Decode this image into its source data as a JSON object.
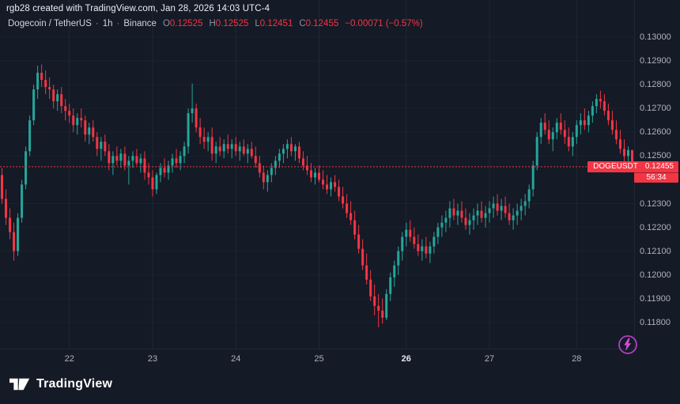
{
  "attribution": "rgb28 created with TradingView.com, Jan 28, 2026 14:03 UTC-4",
  "legend": {
    "symbol_title": "Dogecoin / TetherUS",
    "dot": "·",
    "interval": "1h",
    "exchange": "Binance",
    "ohlc": {
      "o_label": "O",
      "o": "0.12525",
      "h_label": "H",
      "h": "0.12525",
      "l_label": "L",
      "l": "0.12451",
      "c_label": "C",
      "c": "0.12455"
    },
    "change": "−0.00071 (−0.57%)"
  },
  "price_label": {
    "symbol": "DOGEUSDT",
    "price": "0.12455",
    "countdown": "56:34"
  },
  "logo": {
    "text": "TradingView"
  },
  "colors": {
    "up": "#26a69a",
    "down": "#f23645",
    "bg": "#141a26",
    "axis_text": "#aeb2bd",
    "grid_h": "rgba(151,161,186,0.06)",
    "grid_v": "rgba(151,161,186,0.10)",
    "flash": "#bb43cd"
  },
  "chart_data": {
    "type": "candlestick",
    "title": "Dogecoin / TetherUS, 1h, Binance",
    "symbol": "DOGEUSDT",
    "exchange": "Binance",
    "interval": "1h",
    "last_price": 0.12455,
    "last_candle": {
      "open": 0.12525,
      "high": 0.12525,
      "low": 0.12451,
      "close": 0.12455,
      "change": -0.00071,
      "change_pct": -0.57
    },
    "y_axis": {
      "view_max": 0.13156,
      "view_min": 0.1169,
      "labels": [
        {
          "text": "0.13000",
          "price": 0.13
        },
        {
          "text": "0.12900",
          "price": 0.129
        },
        {
          "text": "0.12800",
          "price": 0.128
        },
        {
          "text": "0.12700",
          "price": 0.127
        },
        {
          "text": "0.12600",
          "price": 0.126
        },
        {
          "text": "0.12500",
          "price": 0.125
        },
        {
          "text": "0.12300",
          "price": 0.123
        },
        {
          "text": "0.12200",
          "price": 0.122
        },
        {
          "text": "0.12100",
          "price": 0.121
        },
        {
          "text": "0.12000",
          "price": 0.12
        },
        {
          "text": "0.11900",
          "price": 0.119
        },
        {
          "text": "0.11800",
          "price": 0.118
        }
      ]
    },
    "x_ticks": [
      {
        "text": "22",
        "index": 17,
        "bold": false
      },
      {
        "text": "23",
        "index": 38,
        "bold": false
      },
      {
        "text": "24",
        "index": 59,
        "bold": false
      },
      {
        "text": "25",
        "index": 80,
        "bold": false
      },
      {
        "text": "26",
        "index": 102,
        "bold": true
      },
      {
        "text": "27",
        "index": 123,
        "bold": false
      },
      {
        "text": "28",
        "index": 145,
        "bold": false
      }
    ],
    "candles": [
      [
        0.1242,
        0.1245,
        0.123,
        0.1232
      ],
      [
        0.1232,
        0.1236,
        0.1221,
        0.1224
      ],
      [
        0.1224,
        0.1228,
        0.1215,
        0.1218
      ],
      [
        0.1218,
        0.1222,
        0.1206,
        0.121
      ],
      [
        0.121,
        0.1226,
        0.1208,
        0.1224
      ],
      [
        0.1224,
        0.124,
        0.1222,
        0.1238
      ],
      [
        0.1238,
        0.1254,
        0.1236,
        0.1252
      ],
      [
        0.1252,
        0.1267,
        0.125,
        0.1265
      ],
      [
        0.1265,
        0.128,
        0.1263,
        0.1278
      ],
      [
        0.1278,
        0.1288,
        0.1274,
        0.1285
      ],
      [
        0.1285,
        0.12885,
        0.1279,
        0.1282
      ],
      [
        0.1282,
        0.1286,
        0.1276,
        0.1279
      ],
      [
        0.1279,
        0.1283,
        0.1274,
        0.1278
      ],
      [
        0.1278,
        0.128,
        0.127,
        0.1273
      ],
      [
        0.1273,
        0.1278,
        0.1269,
        0.1276
      ],
      [
        0.1276,
        0.1279,
        0.1268,
        0.1271
      ],
      [
        0.1271,
        0.1274,
        0.1265,
        0.1269
      ],
      [
        0.1269,
        0.1272,
        0.1264,
        0.1267
      ],
      [
        0.1267,
        0.127,
        0.126,
        0.1263
      ],
      [
        0.1263,
        0.1268,
        0.1259,
        0.1266
      ],
      [
        0.1266,
        0.127,
        0.1262,
        0.1265
      ],
      [
        0.1265,
        0.1267,
        0.1256,
        0.1259
      ],
      [
        0.1259,
        0.1264,
        0.1255,
        0.1262
      ],
      [
        0.1262,
        0.1265,
        0.1256,
        0.1258
      ],
      [
        0.1258,
        0.126,
        0.125,
        0.1253
      ],
      [
        0.1253,
        0.1258,
        0.1248,
        0.1256
      ],
      [
        0.1256,
        0.1259,
        0.125,
        0.1252
      ],
      [
        0.1252,
        0.1255,
        0.1244,
        0.1247
      ],
      [
        0.1247,
        0.1252,
        0.1242,
        0.125
      ],
      [
        0.125,
        0.1254,
        0.1246,
        0.1248
      ],
      [
        0.1248,
        0.1253,
        0.1245,
        0.1251
      ],
      [
        0.1251,
        0.1254,
        0.1244,
        0.1246
      ],
      [
        0.1246,
        0.125,
        0.1238,
        0.1248
      ],
      [
        0.1248,
        0.1252,
        0.1245,
        0.125
      ],
      [
        0.125,
        0.1253,
        0.1246,
        0.1247
      ],
      [
        0.1247,
        0.1251,
        0.1243,
        0.1249
      ],
      [
        0.1249,
        0.1252,
        0.124,
        0.1243
      ],
      [
        0.1243,
        0.1247,
        0.1238,
        0.1241
      ],
      [
        0.1241,
        0.1244,
        0.1233,
        0.1236
      ],
      [
        0.1236,
        0.1243,
        0.1234,
        0.1242
      ],
      [
        0.1242,
        0.1247,
        0.1239,
        0.1245
      ],
      [
        0.1245,
        0.1249,
        0.1241,
        0.1243
      ],
      [
        0.1243,
        0.1248,
        0.124,
        0.1246
      ],
      [
        0.1246,
        0.1251,
        0.1243,
        0.1249
      ],
      [
        0.1249,
        0.1253,
        0.1245,
        0.1247
      ],
      [
        0.1247,
        0.1252,
        0.1244,
        0.125
      ],
      [
        0.125,
        0.1256,
        0.1247,
        0.1254
      ],
      [
        0.1254,
        0.127,
        0.1251,
        0.1268
      ],
      [
        0.1268,
        0.12805,
        0.1264,
        0.127
      ],
      [
        0.127,
        0.1272,
        0.126,
        0.1262
      ],
      [
        0.1262,
        0.1266,
        0.1255,
        0.1258
      ],
      [
        0.1258,
        0.1262,
        0.1253,
        0.1256
      ],
      [
        0.1256,
        0.126,
        0.1252,
        0.1258
      ],
      [
        0.1258,
        0.1262,
        0.1248,
        0.1251
      ],
      [
        0.1251,
        0.1256,
        0.1247,
        0.1254
      ],
      [
        0.1254,
        0.1258,
        0.125,
        0.1252
      ],
      [
        0.1252,
        0.1257,
        0.1249,
        0.1255
      ],
      [
        0.1255,
        0.1259,
        0.1251,
        0.1253
      ],
      [
        0.1253,
        0.1257,
        0.1249,
        0.1255
      ],
      [
        0.1255,
        0.1258,
        0.125,
        0.1252
      ],
      [
        0.1252,
        0.1256,
        0.1248,
        0.1254
      ],
      [
        0.1254,
        0.1257,
        0.125,
        0.1251
      ],
      [
        0.1251,
        0.1255,
        0.1247,
        0.1253
      ],
      [
        0.1253,
        0.1256,
        0.1249,
        0.125
      ],
      [
        0.125,
        0.1254,
        0.1245,
        0.1247
      ],
      [
        0.1247,
        0.125,
        0.1241,
        0.1243
      ],
      [
        0.1243,
        0.1246,
        0.1236,
        0.1239
      ],
      [
        0.1239,
        0.1244,
        0.1235,
        0.1242
      ],
      [
        0.1242,
        0.1247,
        0.1239,
        0.1245
      ],
      [
        0.1245,
        0.125,
        0.1242,
        0.1248
      ],
      [
        0.1248,
        0.1253,
        0.1245,
        0.1251
      ],
      [
        0.1251,
        0.1255,
        0.1247,
        0.1253
      ],
      [
        0.1253,
        0.1257,
        0.1249,
        0.1255
      ],
      [
        0.1255,
        0.1258,
        0.125,
        0.1252
      ],
      [
        0.1252,
        0.1255,
        0.1248,
        0.1254
      ],
      [
        0.1254,
        0.1256,
        0.1247,
        0.1249
      ],
      [
        0.1249,
        0.1252,
        0.1244,
        0.1246
      ],
      [
        0.1246,
        0.125,
        0.1242,
        0.1244
      ],
      [
        0.1244,
        0.1247,
        0.1239,
        0.1241
      ],
      [
        0.1241,
        0.1245,
        0.1238,
        0.1243
      ],
      [
        0.1243,
        0.1246,
        0.1239,
        0.124
      ],
      [
        0.124,
        0.1244,
        0.1236,
        0.1238
      ],
      [
        0.1238,
        0.1242,
        0.1234,
        0.1236
      ],
      [
        0.1236,
        0.1241,
        0.1233,
        0.1239
      ],
      [
        0.1239,
        0.1242,
        0.1235,
        0.1237
      ],
      [
        0.1237,
        0.124,
        0.1231,
        0.1233
      ],
      [
        0.1233,
        0.1237,
        0.1228,
        0.123
      ],
      [
        0.123,
        0.1234,
        0.1224,
        0.1226
      ],
      [
        0.1226,
        0.1231,
        0.1221,
        0.1223
      ],
      [
        0.1223,
        0.1227,
        0.1215,
        0.1217
      ],
      [
        0.1217,
        0.1221,
        0.1209,
        0.1211
      ],
      [
        0.1211,
        0.1215,
        0.1202,
        0.1204
      ],
      [
        0.1204,
        0.1209,
        0.1196,
        0.1198
      ],
      [
        0.1198,
        0.1202,
        0.1189,
        0.1191
      ],
      [
        0.1191,
        0.1196,
        0.1183,
        0.1187
      ],
      [
        0.1187,
        0.1192,
        0.1178,
        0.1185
      ],
      [
        0.1185,
        0.119,
        0.11795,
        0.1182
      ],
      [
        0.1182,
        0.1194,
        0.1181,
        0.1192
      ],
      [
        0.1192,
        0.1201,
        0.1189,
        0.1199
      ],
      [
        0.1199,
        0.1206,
        0.1195,
        0.1204
      ],
      [
        0.1204,
        0.1212,
        0.12,
        0.121
      ],
      [
        0.121,
        0.1218,
        0.1206,
        0.1216
      ],
      [
        0.1216,
        0.1222,
        0.1212,
        0.1219
      ],
      [
        0.1219,
        0.1223,
        0.1214,
        0.1216
      ],
      [
        0.1216,
        0.122,
        0.1211,
        0.1213
      ],
      [
        0.1213,
        0.1217,
        0.1208,
        0.121
      ],
      [
        0.121,
        0.1215,
        0.1206,
        0.1212
      ],
      [
        0.1212,
        0.1216,
        0.1207,
        0.1209
      ],
      [
        0.1209,
        0.1214,
        0.1205,
        0.1212
      ],
      [
        0.1212,
        0.1218,
        0.1209,
        0.1216
      ],
      [
        0.1216,
        0.1222,
        0.1213,
        0.122
      ],
      [
        0.122,
        0.1225,
        0.1216,
        0.1222
      ],
      [
        0.1222,
        0.1227,
        0.1218,
        0.1224
      ],
      [
        0.1224,
        0.1231,
        0.122,
        0.1228
      ],
      [
        0.1228,
        0.1232,
        0.1223,
        0.1225
      ],
      [
        0.1225,
        0.123,
        0.1221,
        0.1227
      ],
      [
        0.1227,
        0.1231,
        0.1222,
        0.1224
      ],
      [
        0.1224,
        0.1228,
        0.1219,
        0.1221
      ],
      [
        0.1221,
        0.1226,
        0.1217,
        0.1223
      ],
      [
        0.1223,
        0.1228,
        0.1219,
        0.1225
      ],
      [
        0.1225,
        0.123,
        0.1221,
        0.1227
      ],
      [
        0.1227,
        0.1231,
        0.1222,
        0.1224
      ],
      [
        0.1224,
        0.1229,
        0.122,
        0.1226
      ],
      [
        0.1226,
        0.1231,
        0.1222,
        0.1228
      ],
      [
        0.1228,
        0.1233,
        0.1224,
        0.123
      ],
      [
        0.123,
        0.1234,
        0.1225,
        0.1227
      ],
      [
        0.1227,
        0.1232,
        0.1223,
        0.1229
      ],
      [
        0.1229,
        0.1233,
        0.1224,
        0.1226
      ],
      [
        0.1226,
        0.123,
        0.1221,
        0.1223
      ],
      [
        0.1223,
        0.1228,
        0.1219,
        0.1225
      ],
      [
        0.1225,
        0.123,
        0.1221,
        0.1227
      ],
      [
        0.1227,
        0.1232,
        0.1223,
        0.1229
      ],
      [
        0.1229,
        0.1234,
        0.1225,
        0.1231
      ],
      [
        0.1231,
        0.1238,
        0.1228,
        0.1236
      ],
      [
        0.1236,
        0.1248,
        0.1233,
        0.1246
      ],
      [
        0.1246,
        0.126,
        0.1244,
        0.1258
      ],
      [
        0.1258,
        0.1266,
        0.1255,
        0.1264
      ],
      [
        0.1264,
        0.1268,
        0.1259,
        0.1261
      ],
      [
        0.1261,
        0.1265,
        0.1255,
        0.1257
      ],
      [
        0.1257,
        0.1262,
        0.1252,
        0.126
      ],
      [
        0.126,
        0.1266,
        0.1257,
        0.1264
      ],
      [
        0.1264,
        0.1268,
        0.1259,
        0.1261
      ],
      [
        0.1261,
        0.1265,
        0.1255,
        0.1258
      ],
      [
        0.1258,
        0.1262,
        0.1252,
        0.1254
      ],
      [
        0.1254,
        0.126,
        0.125,
        0.1258
      ],
      [
        0.1258,
        0.1265,
        0.1255,
        0.1263
      ],
      [
        0.1263,
        0.1268,
        0.1259,
        0.1265
      ],
      [
        0.1265,
        0.127,
        0.1261,
        0.1263
      ],
      [
        0.1263,
        0.1269,
        0.126,
        0.1267
      ],
      [
        0.1267,
        0.1273,
        0.1264,
        0.1271
      ],
      [
        0.1271,
        0.1276,
        0.1268,
        0.1274
      ],
      [
        0.1274,
        0.12775,
        0.127,
        0.1273
      ],
      [
        0.1273,
        0.1276,
        0.1267,
        0.1269
      ],
      [
        0.1269,
        0.1272,
        0.1263,
        0.1265
      ],
      [
        0.1265,
        0.1269,
        0.1259,
        0.1261
      ],
      [
        0.1261,
        0.1265,
        0.1255,
        0.1257
      ],
      [
        0.1257,
        0.1261,
        0.1251,
        0.1253
      ],
      [
        0.1253,
        0.1257,
        0.1243,
        0.125
      ],
      [
        0.125,
        0.1254,
        0.1246,
        0.12525
      ],
      [
        0.12525,
        0.12525,
        0.12451,
        0.12455
      ]
    ]
  }
}
